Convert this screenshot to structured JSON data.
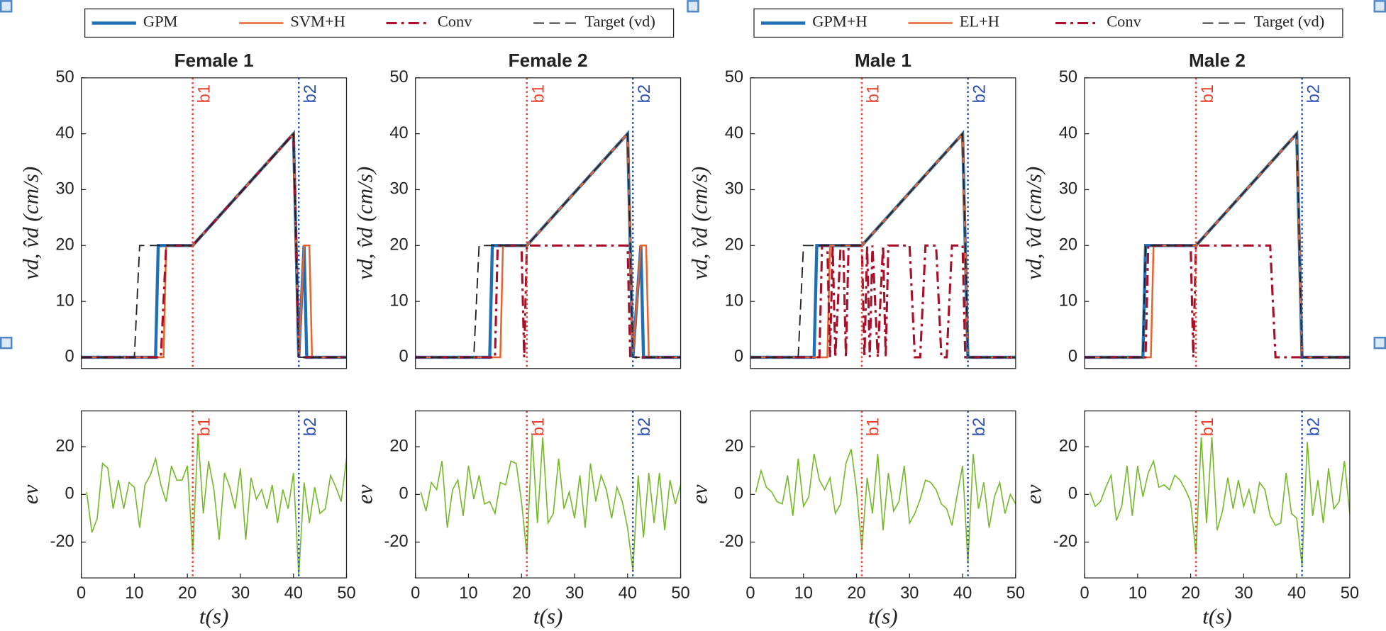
{
  "chart_data": [
    {
      "type": "line",
      "title": "Female 1",
      "ylabel": "vd, v̂d (cm/s)",
      "xlim": [
        0,
        50
      ],
      "ylim": [
        -2,
        50
      ],
      "yticks": [
        0,
        10,
        20,
        30,
        40,
        50
      ],
      "legend": "top",
      "vlines": [
        {
          "x": 21,
          "label": "b1",
          "color": "#e8402a"
        },
        {
          "x": 41,
          "label": "b2",
          "color": "#2a4fb0"
        }
      ],
      "series": [
        {
          "name": "GPM",
          "color": "#1f6fb5",
          "width": 3.5,
          "dash": "solid",
          "x": [
            0,
            14,
            14.5,
            21,
            40,
            41,
            42,
            42.5,
            50
          ],
          "values": [
            0,
            0,
            20,
            20,
            40,
            0,
            20,
            0,
            0
          ]
        },
        {
          "name": "SVM+H",
          "color": "#e8632b",
          "width": 2,
          "dash": "solid",
          "x": [
            0,
            15.5,
            16,
            21,
            40,
            41,
            42,
            43,
            43.5,
            50
          ],
          "values": [
            0,
            0,
            20,
            20,
            40,
            0,
            20,
            20,
            0,
            0
          ]
        },
        {
          "name": "Conv",
          "color": "#a8102a",
          "width": 2.5,
          "dash": "dashdot",
          "x": [
            0,
            15,
            16,
            21,
            40,
            41,
            50
          ],
          "values": [
            0,
            0,
            20,
            20,
            40,
            0,
            0
          ]
        },
        {
          "name": "Target (vd)",
          "color": "#222222",
          "width": 1.5,
          "dash": "dashed",
          "x": [
            0,
            10,
            11,
            21,
            40,
            41,
            50
          ],
          "values": [
            0,
            0,
            20,
            20,
            40,
            0,
            0
          ]
        }
      ]
    },
    {
      "type": "line",
      "title": "Female 2",
      "ylabel": "vd, v̂d (cm/s)",
      "xlim": [
        0,
        50
      ],
      "ylim": [
        -2,
        50
      ],
      "yticks": [
        0,
        10,
        20,
        30,
        40,
        50
      ],
      "vlines": [
        {
          "x": 21,
          "label": "b1",
          "color": "#e8402a"
        },
        {
          "x": 41,
          "label": "b2",
          "color": "#2a4fb0"
        }
      ],
      "series": [
        {
          "color": "#1f6fb5",
          "width": 3.5,
          "dash": "solid",
          "x": [
            0,
            14,
            14.5,
            21,
            40,
            41,
            42.5,
            43,
            50
          ],
          "values": [
            0,
            0,
            20,
            20,
            40,
            0,
            20,
            0,
            0
          ]
        },
        {
          "color": "#e8632b",
          "width": 2,
          "dash": "solid",
          "x": [
            0,
            16,
            16.5,
            21,
            40,
            41,
            42.5,
            43.5,
            44,
            50
          ],
          "values": [
            0,
            0,
            20,
            20,
            40,
            0,
            20,
            20,
            0,
            0
          ]
        },
        {
          "color": "#a8102a",
          "width": 2.5,
          "dash": "dashdot",
          "x": [
            0,
            15,
            15.5,
            20,
            20.5,
            21,
            40,
            40.5,
            50
          ],
          "values": [
            0,
            0,
            20,
            20,
            0,
            20,
            20,
            0,
            0
          ]
        },
        {
          "color": "#222222",
          "width": 1.5,
          "dash": "dashed",
          "x": [
            0,
            11,
            12,
            21,
            40,
            41,
            50
          ],
          "values": [
            0,
            0,
            20,
            20,
            40,
            0,
            0
          ]
        }
      ]
    },
    {
      "type": "line",
      "title": "Male 1",
      "ylabel": "vd, v̂d (cm/s)",
      "xlim": [
        0,
        50
      ],
      "ylim": [
        -2,
        50
      ],
      "yticks": [
        0,
        10,
        20,
        30,
        40,
        50
      ],
      "legend": "top",
      "vlines": [
        {
          "x": 21,
          "label": "b1",
          "color": "#e8402a"
        },
        {
          "x": 41,
          "label": "b2",
          "color": "#2a4fb0"
        }
      ],
      "series": [
        {
          "name": "GPM+H",
          "color": "#1f6fb5",
          "width": 3.5,
          "dash": "solid",
          "x": [
            0,
            12,
            12.5,
            21,
            40,
            41,
            50
          ],
          "values": [
            0,
            0,
            20,
            20,
            40,
            0,
            0
          ]
        },
        {
          "name": "EL+H",
          "color": "#e8632b",
          "width": 2,
          "dash": "solid",
          "x": [
            0,
            14.5,
            15,
            21,
            40,
            41,
            50
          ],
          "values": [
            0,
            0,
            20,
            20,
            40,
            0,
            0
          ]
        },
        {
          "name": "Conv",
          "color": "#a8102a",
          "width": 2.5,
          "dash": "dashdot",
          "x": [
            0,
            13,
            13.5,
            14.5,
            15,
            15.5,
            16,
            17,
            17.5,
            18,
            18.5,
            21,
            21.5,
            22,
            22.5,
            23,
            24,
            25,
            25.5,
            26,
            30,
            31,
            32,
            33,
            35,
            36,
            37,
            38,
            40,
            40.5,
            50
          ],
          "values": [
            0,
            0,
            20,
            20,
            0,
            20,
            0,
            20,
            20,
            0,
            20,
            20,
            0,
            20,
            0,
            20,
            0,
            20,
            0,
            20,
            20,
            0,
            0,
            20,
            20,
            0,
            0,
            20,
            20,
            0,
            0
          ]
        },
        {
          "name": "Target (vd)",
          "color": "#222222",
          "width": 1.5,
          "dash": "dashed",
          "x": [
            0,
            9,
            10,
            21,
            40,
            41,
            50
          ],
          "values": [
            0,
            0,
            20,
            20,
            40,
            0,
            0
          ]
        }
      ]
    },
    {
      "type": "line",
      "title": "Male 2",
      "ylabel": "vd, v̂d (cm/s)",
      "xlim": [
        0,
        50
      ],
      "ylim": [
        -2,
        50
      ],
      "yticks": [
        0,
        10,
        20,
        30,
        40,
        50
      ],
      "vlines": [
        {
          "x": 21,
          "label": "b1",
          "color": "#e8402a"
        },
        {
          "x": 41,
          "label": "b2",
          "color": "#2a4fb0"
        }
      ],
      "series": [
        {
          "color": "#1f6fb5",
          "width": 3.5,
          "dash": "solid",
          "x": [
            0,
            11,
            11.5,
            21,
            40,
            41,
            50
          ],
          "values": [
            0,
            0,
            20,
            20,
            40,
            0,
            0
          ]
        },
        {
          "color": "#e8632b",
          "width": 2,
          "dash": "solid",
          "x": [
            0,
            12.5,
            13,
            21,
            40,
            41,
            50
          ],
          "values": [
            0,
            0,
            20,
            20,
            40,
            0,
            0
          ]
        },
        {
          "color": "#a8102a",
          "width": 2.5,
          "dash": "dashdot",
          "x": [
            0,
            11.5,
            12,
            20,
            20.5,
            21,
            35,
            36,
            50
          ],
          "values": [
            0,
            0,
            20,
            20,
            0,
            20,
            20,
            0,
            0
          ]
        },
        {
          "color": "#222222",
          "width": 1.5,
          "dash": "dashed",
          "x": [
            0,
            11,
            11.5,
            21,
            40,
            41,
            50
          ],
          "values": [
            0,
            0,
            20,
            20,
            40,
            0,
            0
          ]
        }
      ]
    },
    {
      "type": "line",
      "ylabel": "ev",
      "xlabel": "t(s)",
      "xlim": [
        0,
        50
      ],
      "ylim": [
        -35,
        35
      ],
      "xticks": [
        0,
        10,
        20,
        30,
        40,
        50
      ],
      "yticks": [
        -20,
        0,
        20
      ],
      "vlines": [
        {
          "x": 21,
          "label": "b1",
          "color": "#e8402a"
        },
        {
          "x": 41,
          "label": "b2",
          "color": "#2a4fb0"
        }
      ],
      "series": [
        {
          "color": "#76b82a",
          "width": 1.3,
          "dash": "solid",
          "x": [
            1,
            2,
            3,
            4,
            5,
            6,
            7,
            8,
            9,
            10,
            11,
            12,
            13,
            14,
            15,
            16,
            17,
            18,
            19,
            20,
            21,
            22,
            23,
            24,
            25,
            26,
            27,
            28,
            29,
            30,
            31,
            32,
            33,
            34,
            35,
            36,
            37,
            38,
            39,
            40,
            41,
            42,
            43,
            44,
            45,
            46,
            47,
            48,
            49,
            50
          ],
          "values": [
            1,
            -16,
            -10,
            13,
            11,
            -6,
            6,
            -6,
            5,
            3,
            -14,
            4,
            8,
            15,
            4,
            -3,
            12,
            6,
            6,
            12,
            -24,
            25,
            -8,
            14,
            2,
            -19,
            9,
            3,
            -6,
            11,
            -19,
            7,
            -2,
            2,
            -6,
            4,
            -12,
            2,
            -6,
            9,
            -34,
            5,
            -12,
            3,
            -8,
            -6,
            8,
            3,
            -3,
            15
          ]
        }
      ]
    },
    {
      "type": "line",
      "ylabel": "ev",
      "xlabel": "t(s)",
      "xlim": [
        0,
        50
      ],
      "ylim": [
        -35,
        35
      ],
      "xticks": [
        0,
        10,
        20,
        30,
        40,
        50
      ],
      "yticks": [
        -20,
        0,
        20
      ],
      "vlines": [
        {
          "x": 21,
          "label": "b1",
          "color": "#e8402a"
        },
        {
          "x": 41,
          "label": "b2",
          "color": "#2a4fb0"
        }
      ],
      "series": [
        {
          "color": "#76b82a",
          "width": 1.3,
          "dash": "solid",
          "x": [
            1,
            2,
            3,
            4,
            5,
            6,
            7,
            8,
            9,
            10,
            11,
            12,
            13,
            14,
            15,
            16,
            17,
            18,
            19,
            20,
            21,
            22,
            23,
            24,
            25,
            26,
            27,
            28,
            29,
            30,
            31,
            32,
            33,
            34,
            35,
            36,
            37,
            38,
            39,
            40,
            41,
            42,
            43,
            44,
            45,
            46,
            47,
            48,
            49,
            50
          ],
          "values": [
            1,
            -7,
            5,
            2,
            14,
            -14,
            2,
            6,
            -9,
            12,
            -2,
            8,
            -4,
            -3,
            -8,
            5,
            4,
            14,
            13,
            -3,
            -25,
            25,
            -12,
            24,
            -12,
            -8,
            15,
            -6,
            1,
            -10,
            8,
            -14,
            13,
            -3,
            8,
            2,
            -10,
            3,
            -3,
            -14,
            -32,
            8,
            -18,
            9,
            -12,
            9,
            -15,
            6,
            -4,
            4
          ]
        }
      ]
    },
    {
      "type": "line",
      "ylabel": "ev",
      "xlabel": "t(s)",
      "xlim": [
        0,
        50
      ],
      "ylim": [
        -35,
        35
      ],
      "xticks": [
        0,
        10,
        20,
        30,
        40,
        50
      ],
      "yticks": [
        -20,
        0,
        20
      ],
      "vlines": [
        {
          "x": 21,
          "label": "b1",
          "color": "#e8402a"
        },
        {
          "x": 41,
          "label": "b2",
          "color": "#2a4fb0"
        }
      ],
      "series": [
        {
          "color": "#76b82a",
          "width": 1.3,
          "dash": "solid",
          "x": [
            1,
            2,
            3,
            4,
            5,
            6,
            7,
            8,
            9,
            10,
            11,
            12,
            13,
            14,
            15,
            16,
            17,
            18,
            19,
            20,
            21,
            22,
            23,
            24,
            25,
            26,
            27,
            28,
            29,
            30,
            31,
            32,
            33,
            34,
            35,
            36,
            37,
            38,
            39,
            40,
            41,
            42,
            43,
            44,
            45,
            46,
            47,
            48,
            49,
            50
          ],
          "values": [
            1,
            10,
            3,
            1,
            -3,
            -4,
            8,
            -9,
            15,
            -5,
            -1,
            17,
            6,
            2,
            7,
            -8,
            -4,
            13,
            19,
            2,
            -23,
            7,
            -8,
            17,
            -15,
            9,
            -7,
            -3,
            12,
            -12,
            -8,
            -2,
            6,
            5,
            2,
            -4,
            -6,
            -13,
            0,
            12,
            -29,
            17,
            -6,
            5,
            -14,
            -1,
            5,
            -8,
            0,
            -4
          ]
        }
      ]
    },
    {
      "type": "line",
      "ylabel": "ev",
      "xlabel": "t(s)",
      "xlim": [
        0,
        50
      ],
      "ylim": [
        -35,
        35
      ],
      "xticks": [
        0,
        10,
        20,
        30,
        40,
        50
      ],
      "yticks": [
        -20,
        0,
        20
      ],
      "vlines": [
        {
          "x": 21,
          "label": "b1",
          "color": "#e8402a"
        },
        {
          "x": 41,
          "label": "b2",
          "color": "#2a4fb0"
        }
      ],
      "series": [
        {
          "color": "#76b82a",
          "width": 1.3,
          "dash": "solid",
          "x": [
            1,
            2,
            3,
            4,
            5,
            6,
            7,
            8,
            9,
            10,
            11,
            12,
            13,
            14,
            15,
            16,
            17,
            18,
            19,
            20,
            21,
            22,
            23,
            24,
            25,
            26,
            27,
            28,
            29,
            30,
            31,
            32,
            33,
            34,
            35,
            36,
            37,
            38,
            39,
            40,
            41,
            42,
            43,
            44,
            45,
            46,
            47,
            48,
            49,
            50
          ],
          "values": [
            1,
            -5,
            -3,
            3,
            8,
            -11,
            -5,
            12,
            -9,
            12,
            -1,
            9,
            14,
            3,
            4,
            2,
            8,
            6,
            2,
            -3,
            -25,
            24,
            -12,
            24,
            -15,
            -7,
            7,
            -6,
            6,
            -5,
            2,
            -8,
            5,
            2,
            -9,
            -13,
            -12,
            9,
            -8,
            -10,
            -30,
            22,
            -9,
            6,
            -12,
            11,
            -6,
            -3,
            14,
            -8
          ]
        }
      ]
    }
  ]
}
